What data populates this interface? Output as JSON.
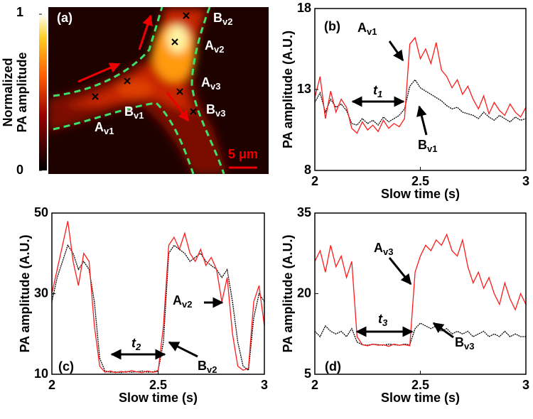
{
  "chart_data": [
    {
      "type": "image",
      "panel_label": "(a)",
      "colorbar_label": [
        "Normalized",
        "PA amplitude"
      ],
      "clim": [
        0,
        1
      ],
      "cticks": [
        0,
        1
      ],
      "annotations": [
        {
          "text": "A",
          "sub": "v1"
        },
        {
          "text": "B",
          "sub": "v1"
        },
        {
          "text": "A",
          "sub": "v2"
        },
        {
          "text": "B",
          "sub": "v2"
        },
        {
          "text": "A",
          "sub": "v3"
        },
        {
          "text": "B",
          "sub": "v3"
        }
      ],
      "scalebar": "5 μm"
    },
    {
      "type": "line",
      "panel_label": "(b)",
      "xlabel": "Slow time (s)",
      "ylabel": "PA amplitude (A.U.)",
      "xlim": [
        2,
        3
      ],
      "xticks": [
        2,
        2.5,
        3
      ],
      "ylim": [
        8,
        18
      ],
      "yticks": [
        8,
        13,
        18
      ],
      "annotations": [
        {
          "text": "A",
          "sub": "v1"
        },
        {
          "text": "t",
          "sub": "1"
        },
        {
          "text": "B",
          "sub": "v1"
        }
      ],
      "x": [
        2,
        2.025,
        2.05,
        2.075,
        2.1,
        2.125,
        2.15,
        2.175,
        2.2,
        2.225,
        2.25,
        2.275,
        2.3,
        2.325,
        2.35,
        2.375,
        2.4,
        2.425,
        2.45,
        2.475,
        2.5,
        2.525,
        2.55,
        2.575,
        2.6,
        2.625,
        2.65,
        2.675,
        2.7,
        2.725,
        2.75,
        2.775,
        2.8,
        2.825,
        2.85,
        2.875,
        2.9,
        2.925,
        2.95,
        2.975,
        3
      ],
      "series": [
        {
          "color": "#000000",
          "values": [
            12.2,
            12.8,
            11.6,
            12.4,
            11.9,
            12.1,
            11.7,
            10.9,
            10.8,
            11.2,
            10.9,
            11.1,
            10.8,
            11.3,
            11.0,
            11.2,
            11.4,
            11.8,
            13.2,
            13.6,
            13.1,
            12.9,
            12.7,
            12.5,
            12.3,
            12.0,
            11.8,
            11.9,
            11.6,
            11.5,
            11.4,
            11.2,
            11.6,
            11.3,
            11.1,
            11.4,
            11.2,
            11.0,
            11.3,
            11.1,
            11.2
          ]
        },
        {
          "color": "#ff1a1a",
          "values": [
            12.5,
            13.8,
            11.2,
            12.9,
            11.6,
            12.4,
            11.9,
            10.6,
            10.3,
            11.0,
            10.5,
            10.8,
            10.4,
            11.1,
            10.6,
            10.9,
            10.7,
            11.2,
            15.8,
            16.2,
            14.9,
            15.5,
            14.6,
            15.9,
            14.2,
            13.8,
            13.1,
            13.6,
            12.7,
            13.2,
            12.4,
            11.8,
            12.6,
            11.5,
            12.2,
            11.7,
            11.4,
            12.1,
            11.6,
            11.3,
            11.9
          ]
        }
      ]
    },
    {
      "type": "line",
      "panel_label": "(c)",
      "xlabel": "Slow time (s)",
      "ylabel": "PA amplitude (A.U.)",
      "xlim": [
        2,
        3
      ],
      "xticks": [
        2,
        2.5,
        3
      ],
      "ylim": [
        10,
        50
      ],
      "yticks": [
        10,
        30,
        50
      ],
      "annotations": [
        {
          "text": "t",
          "sub": "2"
        },
        {
          "text": "A",
          "sub": "v2"
        },
        {
          "text": "B",
          "sub": "v2"
        }
      ],
      "x": [
        2,
        2.025,
        2.05,
        2.075,
        2.1,
        2.125,
        2.15,
        2.175,
        2.2,
        2.225,
        2.25,
        2.275,
        2.3,
        2.325,
        2.35,
        2.375,
        2.4,
        2.425,
        2.45,
        2.475,
        2.5,
        2.525,
        2.55,
        2.575,
        2.6,
        2.625,
        2.65,
        2.675,
        2.7,
        2.725,
        2.75,
        2.775,
        2.8,
        2.825,
        2.85,
        2.875,
        2.9,
        2.925,
        2.95,
        2.975,
        3
      ],
      "series": [
        {
          "color": "#000000",
          "values": [
            28,
            34,
            38,
            42,
            40,
            36,
            38,
            36,
            28,
            14,
            10.8,
            10.5,
            10.6,
            10.4,
            10.7,
            10.5,
            10.6,
            10.8,
            10.5,
            10.6,
            10.9,
            18,
            40,
            42,
            41,
            40,
            38,
            39,
            40,
            38,
            37,
            36,
            34,
            36,
            28,
            18,
            12,
            11,
            24,
            30,
            28
          ]
        },
        {
          "color": "#ff1a1a",
          "values": [
            30,
            36,
            42,
            48,
            38,
            32,
            40,
            38,
            22,
            12,
            10.5,
            10.8,
            10.4,
            10.7,
            10.5,
            10.9,
            10.6,
            10.4,
            10.8,
            10.5,
            10.7,
            22,
            42,
            44,
            41,
            45,
            40,
            38,
            41,
            37,
            39,
            36,
            28,
            34,
            20,
            12,
            11,
            11.5,
            28,
            32,
            22
          ]
        }
      ]
    },
    {
      "type": "line",
      "panel_label": "(d)",
      "xlabel": "Slow time (s)",
      "ylabel": "PA amplitude (A.U.)",
      "xlim": [
        2,
        3
      ],
      "xticks": [
        2,
        2.5,
        3
      ],
      "ylim": [
        5,
        35
      ],
      "yticks": [
        5,
        20,
        35
      ],
      "annotations": [
        {
          "text": "A",
          "sub": "v3"
        },
        {
          "text": "t",
          "sub": "3"
        },
        {
          "text": "B",
          "sub": "v3"
        }
      ],
      "x": [
        2,
        2.025,
        2.05,
        2.075,
        2.1,
        2.125,
        2.15,
        2.175,
        2.2,
        2.225,
        2.25,
        2.275,
        2.3,
        2.325,
        2.35,
        2.375,
        2.4,
        2.425,
        2.45,
        2.475,
        2.5,
        2.525,
        2.55,
        2.575,
        2.6,
        2.625,
        2.65,
        2.675,
        2.7,
        2.725,
        2.75,
        2.775,
        2.8,
        2.825,
        2.85,
        2.875,
        2.9,
        2.925,
        2.95,
        2.975,
        3
      ],
      "series": [
        {
          "color": "#000000",
          "values": [
            13,
            12,
            14,
            13,
            12.5,
            13,
            12,
            13.5,
            11,
            10.5,
            10.4,
            10.6,
            10.5,
            10.4,
            10.6,
            10.5,
            10.4,
            10.6,
            10.5,
            13.5,
            14.5,
            14,
            13.5,
            14,
            13,
            13.5,
            12.5,
            13,
            12.5,
            13,
            12,
            12.5,
            13,
            12,
            12.5,
            12,
            13,
            12,
            12.5,
            12,
            12
          ]
        },
        {
          "color": "#ff1a1a",
          "values": [
            26,
            28,
            24,
            29,
            25,
            27,
            23,
            26,
            12,
            10.5,
            10.3,
            10.6,
            10.4,
            10.5,
            10.2,
            10.6,
            10.4,
            10.5,
            10.3,
            24,
            27,
            29,
            28,
            30,
            29,
            31,
            28,
            27,
            30,
            25,
            22,
            24,
            21,
            23,
            20,
            18,
            22,
            19,
            17,
            20,
            18
          ]
        }
      ]
    }
  ]
}
